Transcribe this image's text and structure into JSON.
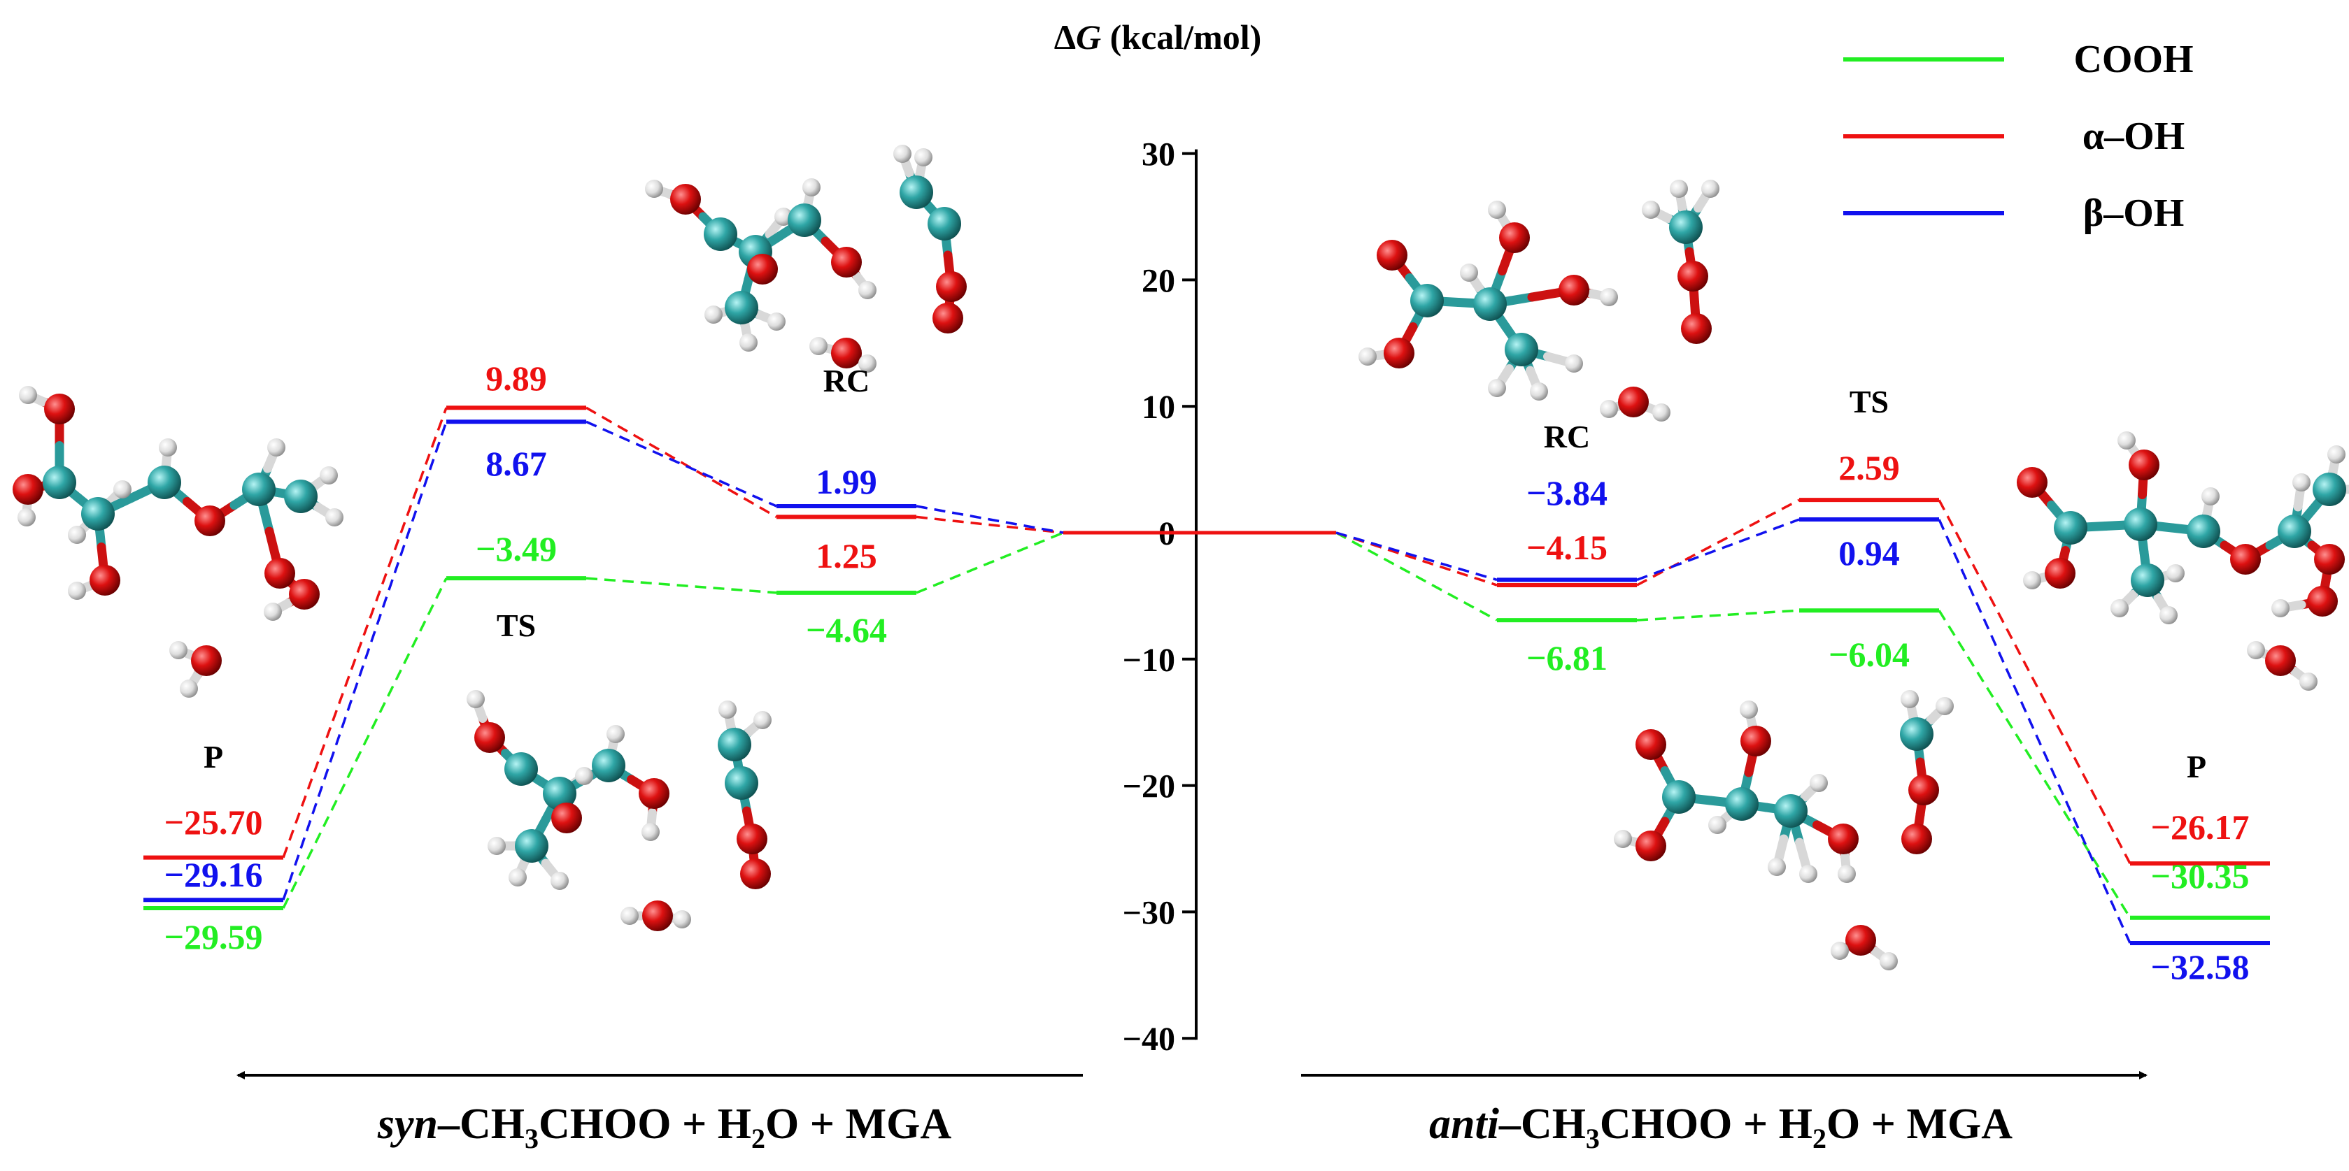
{
  "axis": {
    "title_prefix": "Δ",
    "title_var": "G",
    "title_unit": " (kcal/mol)",
    "ticks": [
      "30",
      "20",
      "10",
      "0",
      "−10",
      "−20",
      "−30",
      "−40"
    ],
    "ylim": [
      -40,
      30
    ]
  },
  "legend": [
    {
      "label": "COOH",
      "color": "#22ee22"
    },
    {
      "label": "α–OH",
      "color": "#ee1111"
    },
    {
      "label": "β–OH",
      "color": "#1111ee"
    }
  ],
  "stages": {
    "syn_p": "P",
    "syn_ts": "TS",
    "syn_rc": "RC",
    "anti_rc": "RC",
    "anti_ts": "TS",
    "anti_p": "P"
  },
  "reactions": {
    "syn": {
      "italic": "syn",
      "rest": "–CH",
      "s1": "3",
      "mid": "CHOO + H",
      "s2": "2",
      "end": "O + MGA"
    },
    "anti": {
      "italic": "anti",
      "rest": "–CH",
      "s1": "3",
      "mid": "CHOO + H",
      "s2": "2",
      "end": "O + MGA"
    }
  },
  "chart_data": {
    "type": "energy-profile",
    "y_unit": "kcal/mol",
    "stages_left": [
      "P",
      "TS",
      "RC"
    ],
    "stages_right": [
      "RC",
      "TS",
      "P"
    ],
    "series": [
      {
        "name": "COOH",
        "color": "#22ee22",
        "syn": {
          "P": "−29.59",
          "TS": "−3.49",
          "RC": "−4.64"
        },
        "anti": {
          "RC": "−6.81",
          "TS": "−6.04",
          "P": "−30.35"
        }
      },
      {
        "name": "α–OH",
        "color": "#ee1111",
        "syn": {
          "P": "−25.70",
          "TS": "9.89",
          "RC": "1.25"
        },
        "anti": {
          "RC": "−4.15",
          "TS": "2.59",
          "P": "−26.17"
        }
      },
      {
        "name": "β–OH",
        "color": "#1111ee",
        "syn": {
          "P": "−29.16",
          "TS": "8.67",
          "RC": "1.99"
        },
        "anti": {
          "RC": "−3.84",
          "TS": "0.94",
          "P": "−32.58"
        }
      }
    ],
    "reactant_level": 0
  }
}
